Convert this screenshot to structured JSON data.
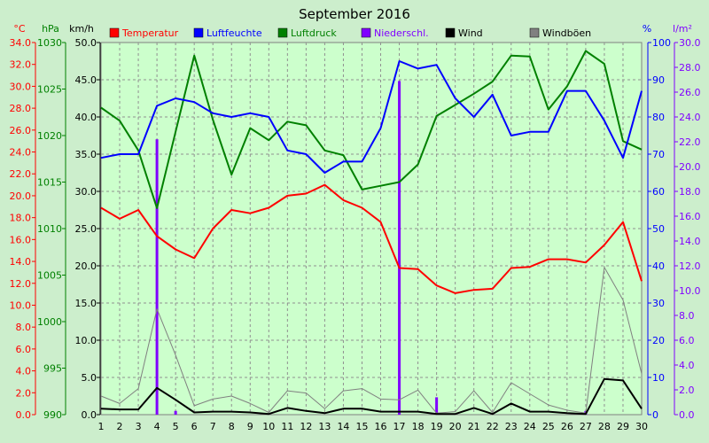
{
  "chart_data": {
    "type": "line",
    "title": "September 2016",
    "x": [
      1,
      2,
      3,
      4,
      5,
      6,
      7,
      8,
      9,
      10,
      11,
      12,
      13,
      14,
      15,
      16,
      17,
      18,
      19,
      20,
      21,
      22,
      23,
      24,
      25,
      26,
      27,
      28,
      29,
      30
    ],
    "xlim": [
      1,
      30
    ],
    "axes": {
      "temp": {
        "unit": "°C",
        "color": "#ff0000",
        "lim": [
          0,
          34
        ],
        "ticks": [
          "0.0",
          "2.0",
          "4.0",
          "6.0",
          "8.0",
          "10.0",
          "12.0",
          "14.0",
          "16.0",
          "18.0",
          "20.0",
          "22.0",
          "24.0",
          "26.0",
          "28.0",
          "30.0",
          "32.0",
          "34.0"
        ]
      },
      "press": {
        "unit": "hPa",
        "color": "#008000",
        "lim": [
          990,
          1030
        ],
        "ticks": [
          "990",
          "995",
          "1000",
          "1005",
          "1010",
          "1015",
          "1020",
          "1025",
          "1030"
        ]
      },
      "wind": {
        "unit": "km/h",
        "color": "#000000",
        "lim": [
          0,
          50
        ],
        "ticks": [
          "0.0",
          "5.0",
          "10.0",
          "15.0",
          "20.0",
          "25.0",
          "30.0",
          "35.0",
          "40.0",
          "45.0",
          "50.0"
        ]
      },
      "hum": {
        "unit": "%",
        "color": "#0000ff",
        "lim": [
          0,
          100
        ],
        "ticks": [
          "0",
          "10",
          "20",
          "30",
          "40",
          "50",
          "60",
          "70",
          "80",
          "90",
          "100"
        ]
      },
      "rain": {
        "unit": "l/m²",
        "color": "#8000ff",
        "lim": [
          0,
          30
        ],
        "ticks": [
          "0.0",
          "2.0",
          "4.0",
          "6.0",
          "8.0",
          "10.0",
          "12.0",
          "14.0",
          "16.0",
          "18.0",
          "20.0",
          "22.0",
          "24.0",
          "26.0",
          "28.0",
          "30.0"
        ]
      }
    },
    "legend": [
      {
        "name": "Temperatur",
        "color": "#ff0000"
      },
      {
        "name": "Luftfeuchte",
        "color": "#0000ff"
      },
      {
        "name": "Luftdruck",
        "color": "#008000"
      },
      {
        "name": "Niederschl.",
        "color": "#8000ff"
      },
      {
        "name": "Wind",
        "color": "#000000"
      },
      {
        "name": "Windböen",
        "color": "#808080"
      }
    ],
    "series": [
      {
        "name": "Temperatur",
        "axis": "temp",
        "color": "#ff0000",
        "values": [
          18.9,
          17.9,
          18.7,
          16.3,
          15.1,
          14.3,
          17.0,
          18.7,
          18.4,
          18.9,
          20.0,
          20.2,
          21.0,
          19.6,
          18.9,
          17.6,
          13.4,
          13.3,
          11.8,
          11.1,
          11.4,
          11.5,
          13.4,
          13.5,
          14.2,
          14.2,
          13.9,
          15.5,
          17.6,
          12.2
        ]
      },
      {
        "name": "Luftfeuchte",
        "axis": "hum",
        "color": "#0000ff",
        "values": [
          69,
          70,
          70,
          83,
          85,
          84,
          81,
          80,
          81,
          80,
          71,
          70,
          65,
          68,
          68,
          77,
          95,
          93,
          94,
          85,
          80,
          86,
          75,
          76,
          76,
          87,
          87,
          79,
          69,
          87
        ]
      },
      {
        "name": "Luftdruck",
        "axis": "press",
        "color": "#008000",
        "values": [
          1023.0,
          1021.6,
          1018.4,
          1012.2,
          1020.4,
          1028.6,
          1021.7,
          1015.8,
          1020.8,
          1019.5,
          1021.5,
          1021.1,
          1018.4,
          1017.9,
          1014.2,
          1014.6,
          1015.0,
          1016.9,
          1022.1,
          1023.3,
          1024.5,
          1025.8,
          1028.6,
          1028.5,
          1022.8,
          1025.3,
          1029.1,
          1027.7,
          1019.4,
          1018.5
        ]
      },
      {
        "name": "Wind",
        "axis": "wind",
        "color": "#000000",
        "values": [
          0.8,
          0.7,
          0.7,
          3.6,
          2.0,
          0.3,
          0.4,
          0.4,
          0.3,
          0.1,
          0.9,
          0.5,
          0.2,
          0.8,
          0.8,
          0.4,
          0.4,
          0.4,
          0.1,
          0.1,
          0.9,
          0.1,
          1.5,
          0.4,
          0.4,
          0.2,
          0.1,
          4.8,
          4.6,
          0.8
        ]
      },
      {
        "name": "Windböen",
        "axis": "wind",
        "color": "#808080",
        "values": [
          2.5,
          1.5,
          3.5,
          14.2,
          8.0,
          1.2,
          2.1,
          2.5,
          1.5,
          0.3,
          3.2,
          2.9,
          0.8,
          3.2,
          3.5,
          2.1,
          2.0,
          3.3,
          0.2,
          0.4,
          3.2,
          0.3,
          4.3,
          2.8,
          1.3,
          0.6,
          0.2,
          19.8,
          15.4,
          5.5
        ]
      }
    ],
    "bars": {
      "name": "Niederschl.",
      "axis": "rain",
      "color": "#8000ff",
      "x": [
        4,
        5,
        17,
        19,
        27
      ],
      "values": [
        22.2,
        0.3,
        26.9,
        1.4,
        0.3
      ]
    },
    "grid": true
  }
}
